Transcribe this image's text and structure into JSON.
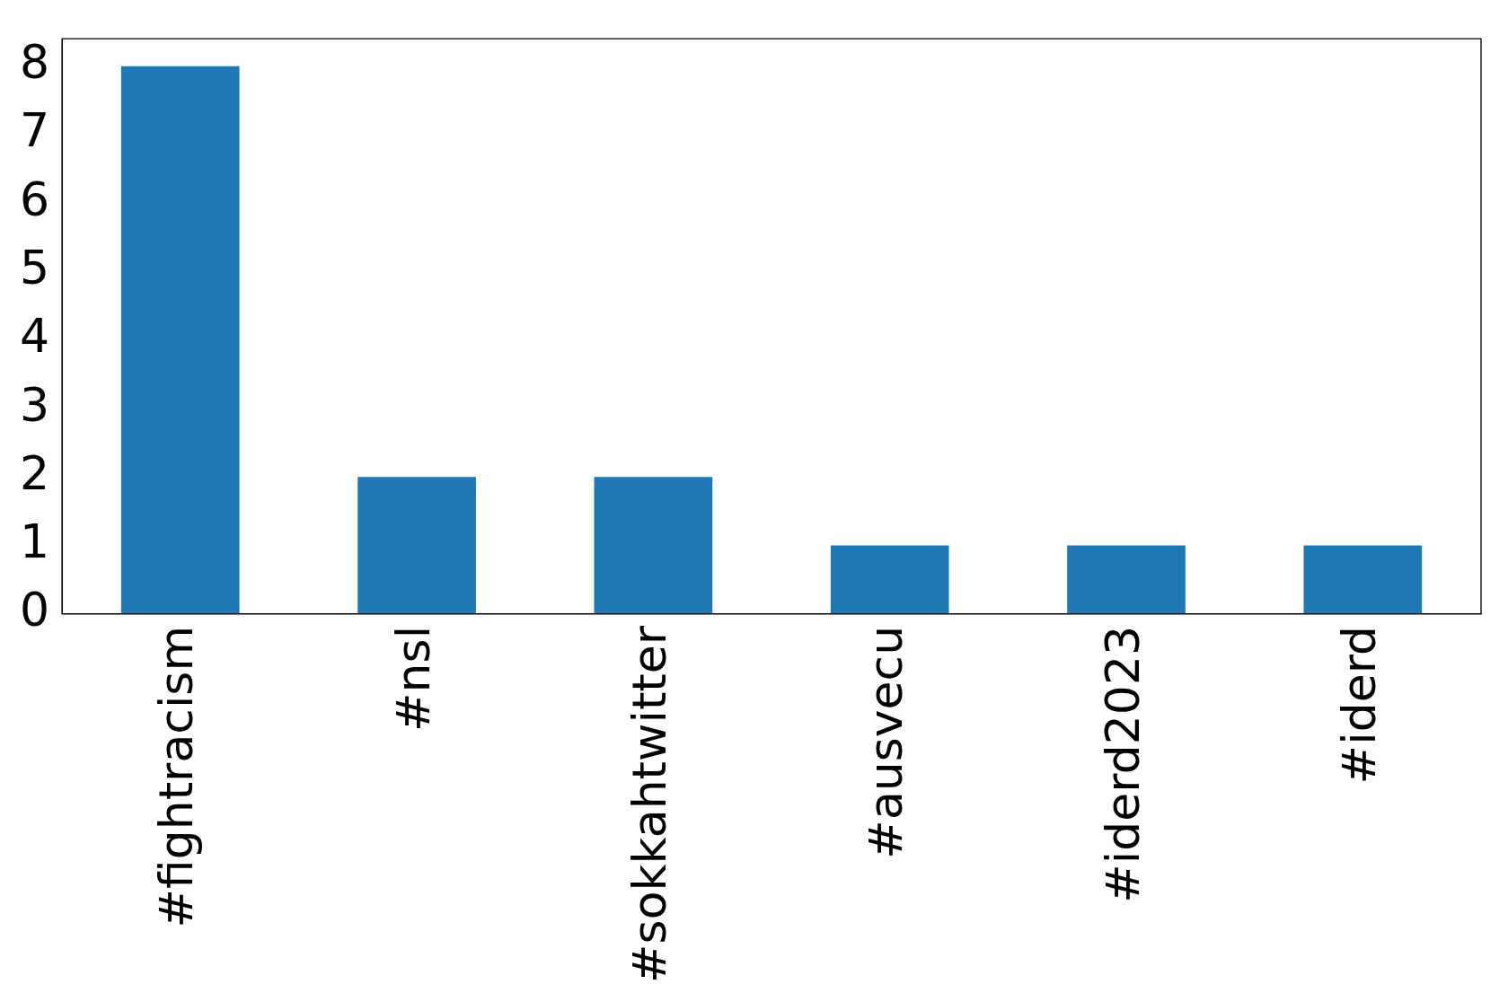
{
  "chart_data": {
    "type": "bar",
    "categories": [
      "#fightracism",
      "#nsl",
      "#sokkahtwitter",
      "#ausvecu",
      "#iderd2023",
      "#iderd"
    ],
    "values": [
      8,
      2,
      2,
      1,
      1,
      1
    ],
    "color": "#1f77b4",
    "ylim": [
      0,
      8.4
    ],
    "yticks": [
      0,
      1,
      2,
      3,
      4,
      5,
      6,
      7,
      8
    ],
    "grid": false,
    "legend": false
  }
}
